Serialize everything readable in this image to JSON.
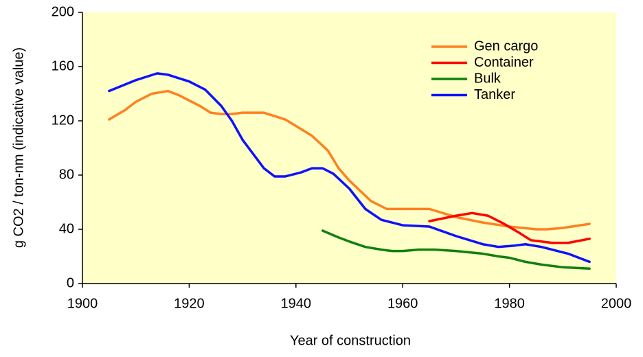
{
  "chart_data": {
    "type": "line",
    "x_label": "Year of construction",
    "y_label": "g CO2 / ton-nm (indicative value)",
    "xlim": [
      1900,
      2000
    ],
    "xticks": [
      1900,
      1920,
      1940,
      1960,
      1980,
      2000
    ],
    "ylim": [
      0,
      200
    ],
    "yticks": [
      0,
      40,
      80,
      120,
      160,
      200
    ],
    "grid": false,
    "legend": "top-right",
    "background": "#ffffc8",
    "series": [
      {
        "name": "Gen cargo",
        "color": "#ff8020",
        "x": [
          1905,
          1908,
          1910,
          1913,
          1916,
          1918,
          1922,
          1924,
          1926,
          1928,
          1930,
          1934,
          1938,
          1943,
          1946,
          1948,
          1950,
          1954,
          1957,
          1960,
          1965,
          1970,
          1975,
          1980,
          1985,
          1987,
          1990,
          1995
        ],
        "values": [
          121,
          128,
          134,
          140,
          142,
          139,
          131,
          126,
          125,
          125,
          126,
          126,
          121,
          109,
          98,
          85,
          76,
          61,
          55,
          55,
          55,
          49,
          45,
          42,
          40,
          40,
          41,
          44
        ]
      },
      {
        "name": "Container",
        "color": "#ff0000",
        "x": [
          1965,
          1970,
          1973,
          1976,
          1979,
          1982,
          1984,
          1988,
          1991,
          1995
        ],
        "values": [
          46,
          50,
          52,
          50,
          44,
          37,
          32,
          30,
          30,
          33
        ]
      },
      {
        "name": "Bulk",
        "color": "#108010",
        "x": [
          1945,
          1948,
          1950,
          1953,
          1956,
          1958,
          1960,
          1963,
          1966,
          1970,
          1975,
          1978,
          1980,
          1983,
          1986,
          1990,
          1995
        ],
        "values": [
          39,
          34,
          31,
          27,
          25,
          24,
          24,
          25,
          25,
          24,
          22,
          20,
          19,
          16,
          14,
          12,
          11
        ]
      },
      {
        "name": "Tanker",
        "color": "#1010ff",
        "x": [
          1905,
          1910,
          1914,
          1916,
          1920,
          1923,
          1926,
          1928,
          1930,
          1934,
          1936,
          1938,
          1941,
          1943,
          1945,
          1947,
          1950,
          1953,
          1956,
          1960,
          1965,
          1970,
          1975,
          1978,
          1981,
          1983,
          1986,
          1991,
          1995
        ],
        "values": [
          142,
          150,
          155,
          154,
          149,
          143,
          131,
          120,
          106,
          85,
          79,
          79,
          82,
          85,
          85,
          81,
          70,
          55,
          47,
          43,
          42,
          35,
          29,
          27,
          28,
          29,
          27,
          22,
          16
        ]
      }
    ]
  }
}
